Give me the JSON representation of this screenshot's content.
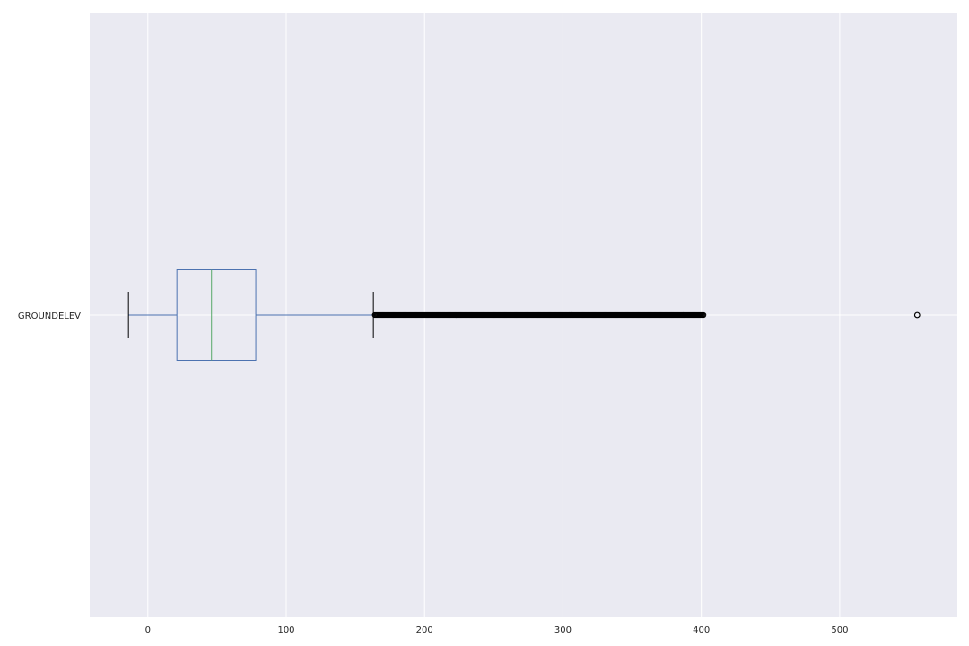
{
  "chart_data": {
    "type": "box",
    "orientation": "horizontal",
    "title": "",
    "xlabel": "",
    "ylabel": "",
    "xlim": [
      -42,
      585
    ],
    "x_ticks": [
      0,
      100,
      200,
      300,
      400,
      500
    ],
    "x_tick_labels": [
      "0",
      "100",
      "200",
      "300",
      "400",
      "500"
    ],
    "grid": true,
    "series": [
      {
        "name": "GROUNDELEV",
        "whisker_low": -14,
        "q1": 21,
        "median": 46,
        "q3": 78,
        "whisker_high": 163,
        "outlier_range": [
          164,
          402
        ],
        "outliers": [
          556
        ]
      }
    ],
    "colors": {
      "background": "#eaeaf2",
      "grid": "#ffffff",
      "box": "#4c72b0",
      "median": "#55a868",
      "whisker_cap": "#000000",
      "outlier": "#000000"
    }
  }
}
